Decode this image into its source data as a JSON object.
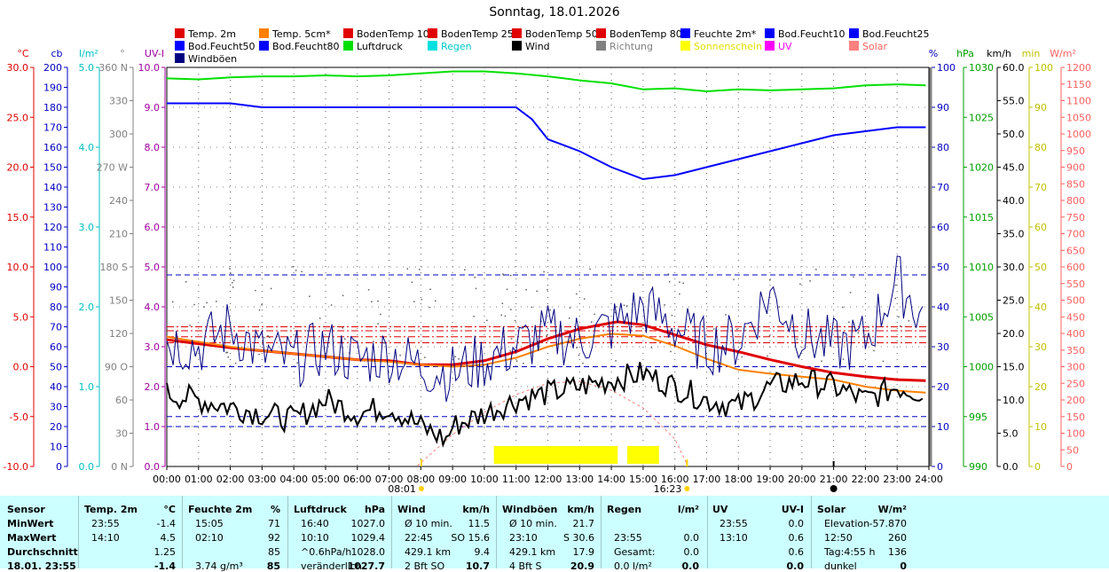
{
  "title": "Sonntag, 18.01.2026",
  "legend": [
    {
      "label": "Temp. 2m",
      "color": "#e00000"
    },
    {
      "label": "Temp. 5cm*",
      "color": "#ff8000"
    },
    {
      "label": "BodenTemp 10",
      "color": "#e00000"
    },
    {
      "label": "BodenTemp 25",
      "color": "#e00000"
    },
    {
      "label": "BodenTemp 50",
      "color": "#e00000"
    },
    {
      "label": "BodenTemp 80",
      "color": "#e00000"
    },
    {
      "label": "Feuchte 2m*",
      "color": "#0000ff"
    },
    {
      "label": "Bod.Feucht10",
      "color": "#0000ff"
    },
    {
      "label": "Bod.Feucht25",
      "color": "#0000ff"
    },
    {
      "label": "Bod.Feucht50",
      "color": "#0000ff"
    },
    {
      "label": "Bod.Feucht80",
      "color": "#0000ff"
    },
    {
      "label": "Luftdruck",
      "color": "#00e000"
    },
    {
      "label": "Regen",
      "color": "#00e0e0"
    },
    {
      "label": "Wind",
      "color": "#000000"
    },
    {
      "label": "Richtung",
      "color": "#808080"
    },
    {
      "label": "Sonnenschein",
      "color": "#ffff00"
    },
    {
      "label": "UV",
      "color": "#ff00ff"
    },
    {
      "label": "Solar",
      "color": "#ff8080"
    },
    {
      "label": "Windböen",
      "color": "#000080"
    }
  ],
  "axes": {
    "temp": {
      "unit": "°C",
      "ticks": [
        "30.0",
        "25.0",
        "20.0",
        "15.0",
        "10.0",
        "5.0",
        "0.0",
        "-5.0",
        "-10.0"
      ],
      "color": "#e00000"
    },
    "cb": {
      "unit": "cb",
      "ticks": [
        "200",
        "190",
        "180",
        "170",
        "160",
        "150",
        "140",
        "130",
        "120",
        "110",
        "100",
        "90",
        "80",
        "70",
        "60",
        "50",
        "40",
        "30",
        "20",
        "10",
        "0"
      ],
      "color": "#0000c0"
    },
    "rain_l": {
      "unit": "l/m²",
      "ticks": [
        "5.0",
        "4.0",
        "3.0",
        "2.0",
        "1.0",
        "0.0"
      ],
      "color": "#00c0c0"
    },
    "dir": {
      "unit": "°",
      "ticks": [
        "360 N",
        "330",
        "300",
        "270 W",
        "240",
        "210",
        "180 S",
        "150",
        "120",
        "90 O",
        "60",
        "30",
        "0 N"
      ],
      "color": "#808080"
    },
    "uv": {
      "unit": "UV-I",
      "ticks": [
        "10.0",
        "9.0",
        "8.0",
        "7.0",
        "6.0",
        "5.0",
        "4.0",
        "3.0",
        "2.0",
        "1.0",
        "0.0"
      ],
      "color": "#a000a0"
    },
    "hum": {
      "unit": "%",
      "ticks": [
        "100",
        "90",
        "80",
        "70",
        "60",
        "50",
        "40",
        "30",
        "20",
        "10",
        "0"
      ],
      "color": "#0000c0"
    },
    "press": {
      "unit": "hPa",
      "ticks": [
        "1030",
        "1025",
        "1020",
        "1015",
        "1010",
        "1005",
        "1000",
        "995",
        "990"
      ],
      "color": "#00a000"
    },
    "wind": {
      "unit": "km/h",
      "ticks": [
        "60.0",
        "55.0",
        "50.0",
        "45.0",
        "40.0",
        "35.0",
        "30.0",
        "25.0",
        "20.0",
        "15.0",
        "10.0",
        "5.0",
        "0.0"
      ],
      "color": "#000000"
    },
    "min": {
      "unit": "min",
      "ticks": [
        "100",
        "90",
        "80",
        "70",
        "60",
        "50",
        "40",
        "30",
        "20",
        "10",
        "0"
      ],
      "color": "#c0c000"
    },
    "solar": {
      "unit": "W/m²",
      "ticks": [
        "1200",
        "1150",
        "1100",
        "1050",
        "1000",
        "950",
        "900",
        "850",
        "800",
        "750",
        "700",
        "650",
        "600",
        "550",
        "500",
        "450",
        "400",
        "350",
        "300",
        "250",
        "200",
        "150",
        "100",
        "50",
        "0"
      ],
      "color": "#ff6060"
    },
    "time_ticks": [
      "00:00",
      "01:00",
      "02:00",
      "03:00",
      "04:00",
      "05:00",
      "06:00",
      "07:00",
      "08:00",
      "09:00",
      "10:00",
      "11:00",
      "12:00",
      "13:00",
      "14:00",
      "15:00",
      "16:00",
      "17:00",
      "18:00",
      "19:00",
      "20:00",
      "21:00",
      "22:00",
      "23:00",
      "24:00"
    ],
    "sunrise": "08:01",
    "sunset": "16:23"
  },
  "chart_data": {
    "type": "line",
    "x_unit": "hour",
    "series": [
      {
        "name": "Temp. 2m",
        "unit": "°C",
        "color": "#e00000",
        "x": [
          0,
          1,
          2,
          3,
          4,
          5,
          6,
          7,
          8,
          9,
          10,
          11,
          12,
          13,
          14,
          14.2,
          15,
          16,
          17,
          18,
          19,
          20,
          21,
          22,
          23,
          23.9
        ],
        "y": [
          2.7,
          2.3,
          1.9,
          1.6,
          1.3,
          1.0,
          0.7,
          0.6,
          0.2,
          0.2,
          0.6,
          1.5,
          2.8,
          3.8,
          4.4,
          4.5,
          4.2,
          3.2,
          2.2,
          1.5,
          0.7,
          0.0,
          -0.6,
          -1.0,
          -1.3,
          -1.4
        ]
      },
      {
        "name": "Temp. 5cm*",
        "unit": "°C",
        "color": "#ff8000",
        "x": [
          0,
          1,
          2,
          3,
          4,
          5,
          6,
          7,
          8,
          9,
          10,
          11,
          12,
          13,
          14,
          15,
          16,
          17,
          18,
          19,
          20,
          21,
          22,
          23,
          23.9
        ],
        "y": [
          3.0,
          2.5,
          2.0,
          1.6,
          1.3,
          1.0,
          0.7,
          0.5,
          0.2,
          0.0,
          0.2,
          0.9,
          2.0,
          2.8,
          3.3,
          3.1,
          2.1,
          0.8,
          -0.3,
          -0.7,
          -1.0,
          -1.3,
          -2.0,
          -2.4,
          -2.6
        ]
      },
      {
        "name": "Feuchte 2m*",
        "unit": "%",
        "color": "#0000ff",
        "x": [
          0,
          1,
          2,
          3,
          4,
          5,
          6,
          7,
          8,
          9,
          10,
          11,
          11.5,
          12,
          13,
          14,
          15,
          16,
          17,
          18,
          19,
          20,
          21,
          22,
          23,
          23.9
        ],
        "y": [
          91,
          91,
          91,
          90,
          90,
          90,
          90,
          90,
          90,
          90,
          90,
          90,
          87,
          82,
          79,
          75,
          72,
          73,
          75,
          77,
          79,
          81,
          83,
          84,
          85,
          85
        ]
      },
      {
        "name": "Luftdruck",
        "unit": "hPa",
        "color": "#00e000",
        "x": [
          0,
          1,
          2,
          3,
          4,
          5,
          6,
          7,
          8,
          9,
          10,
          11,
          12,
          13,
          14,
          15,
          16,
          17,
          18,
          19,
          20,
          21,
          22,
          23,
          23.9
        ],
        "y": [
          1028.9,
          1028.8,
          1029.0,
          1029.1,
          1029.1,
          1029.2,
          1029.1,
          1029.2,
          1029.4,
          1029.6,
          1029.6,
          1029.4,
          1029.1,
          1028.7,
          1028.4,
          1027.8,
          1027.9,
          1027.6,
          1027.8,
          1027.7,
          1027.8,
          1027.9,
          1028.2,
          1028.3,
          1028.2
        ]
      },
      {
        "name": "Wind",
        "unit": "km/h",
        "color": "#000000",
        "x": [
          0,
          1,
          2,
          3,
          4,
          5,
          6,
          7,
          8,
          8.8,
          9,
          10,
          11,
          12,
          13,
          14,
          15,
          16,
          17,
          18,
          19,
          20,
          21,
          22,
          23,
          23.9
        ],
        "y": [
          11,
          10,
          9,
          8,
          7,
          10,
          8,
          9,
          6,
          4,
          6,
          8,
          10,
          11,
          12,
          13,
          14,
          12,
          10,
          9,
          12,
          13,
          12,
          10,
          12,
          11
        ]
      },
      {
        "name": "Windböen",
        "unit": "km/h",
        "color": "#000080",
        "x": [
          0,
          1,
          2,
          3,
          4,
          5,
          6,
          7,
          8,
          9,
          10,
          11,
          12,
          13,
          14,
          15,
          16,
          17,
          18,
          19,
          20,
          21,
          22,
          23,
          23.9
        ],
        "y": [
          19,
          18,
          21,
          17,
          16,
          18,
          16,
          17,
          15,
          14,
          16,
          18,
          20,
          19,
          21,
          24,
          21,
          18,
          19,
          26,
          20,
          18,
          19,
          28,
          22
        ]
      },
      {
        "name": "Sonnenschein",
        "unit": "min",
        "color": "#ffff00",
        "x": [
          10.3,
          11.0,
          12.0,
          13.0,
          14.0,
          14.6,
          15.4
        ],
        "y": [
          5,
          5,
          5,
          5,
          5,
          0,
          5
        ]
      }
    ],
    "sunshine_blocks": [
      [
        10.3,
        14.2
      ],
      [
        14.5,
        15.5
      ]
    ]
  },
  "stats": {
    "headers": {
      "sensor": "Sensor",
      "temp": "Temp. 2m",
      "temp_u": "°C",
      "hum": "Feuchte 2m",
      "hum_u": "%",
      "press": "Luftdruck",
      "press_u": "hPa",
      "wind": "Wind",
      "wind_u": "km/h",
      "gust": "Windböen",
      "gust_u": "km/h",
      "rain": "Regen",
      "rain_u": "l/m²",
      "uv": "UV",
      "uv_u": "UV-I",
      "solar": "Solar",
      "solar_u": "W/m²"
    },
    "rows": [
      {
        "label": "MinWert",
        "temp_t": "23:55",
        "temp_v": "-1.4",
        "hum_t": "15:05",
        "hum_v": "71",
        "press_t": "16:40",
        "press_v": "1027.0",
        "wind_t": "Ø 10 min.",
        "wind_v": "11.5",
        "gust_t": "Ø 10 min.",
        "gust_v": "21.7",
        "rain_t": "",
        "rain_v": "",
        "uv_t": "23:55",
        "uv_v": "0.0",
        "solar_t": "Elevation",
        "solar_v": "-57.870"
      },
      {
        "label": "MaxWert",
        "temp_t": "14:10",
        "temp_v": "4.5",
        "hum_t": "02:10",
        "hum_v": "92",
        "press_t": "10:10",
        "press_v": "1029.4",
        "wind_t": "22:45",
        "wind_v": "SO 15.6",
        "gust_t": "23:10",
        "gust_v": "S 30.6",
        "rain_t": "23:55",
        "rain_v": "0.0",
        "uv_t": "13:10",
        "uv_v": "0.6",
        "solar_t": "12:50",
        "solar_v": "260"
      },
      {
        "label": "Durchschnitt",
        "temp_t": "",
        "temp_v": "1.25",
        "hum_t": "",
        "hum_v": "85",
        "press_t": "^0.6hPa/h",
        "press_v": "1028.0",
        "wind_t": "429.1 km",
        "wind_v": "9.4",
        "gust_t": "429.1 km",
        "gust_v": "17.9",
        "rain_t": "Gesamt:",
        "rain_v": "0.0",
        "uv_t": "",
        "uv_v": "0.6",
        "solar_t": "Tag:4:55 h",
        "solar_v": "136"
      },
      {
        "label": "18.01. 23:55",
        "temp_t": "",
        "temp_v": "-1.4",
        "hum_t": "3.74 g/m³",
        "hum_v": "85",
        "press_t": "veränderlich",
        "press_v": "1027.7",
        "wind_t": "2 Bft SO",
        "wind_v": "10.7",
        "gust_t": "4 Bft S",
        "gust_v": "20.9",
        "rain_t": "0.0 l/m²",
        "rain_v": "0.0",
        "uv_t": "",
        "uv_v": "0.0",
        "solar_t": "dunkel",
        "solar_v": "0"
      }
    ]
  }
}
